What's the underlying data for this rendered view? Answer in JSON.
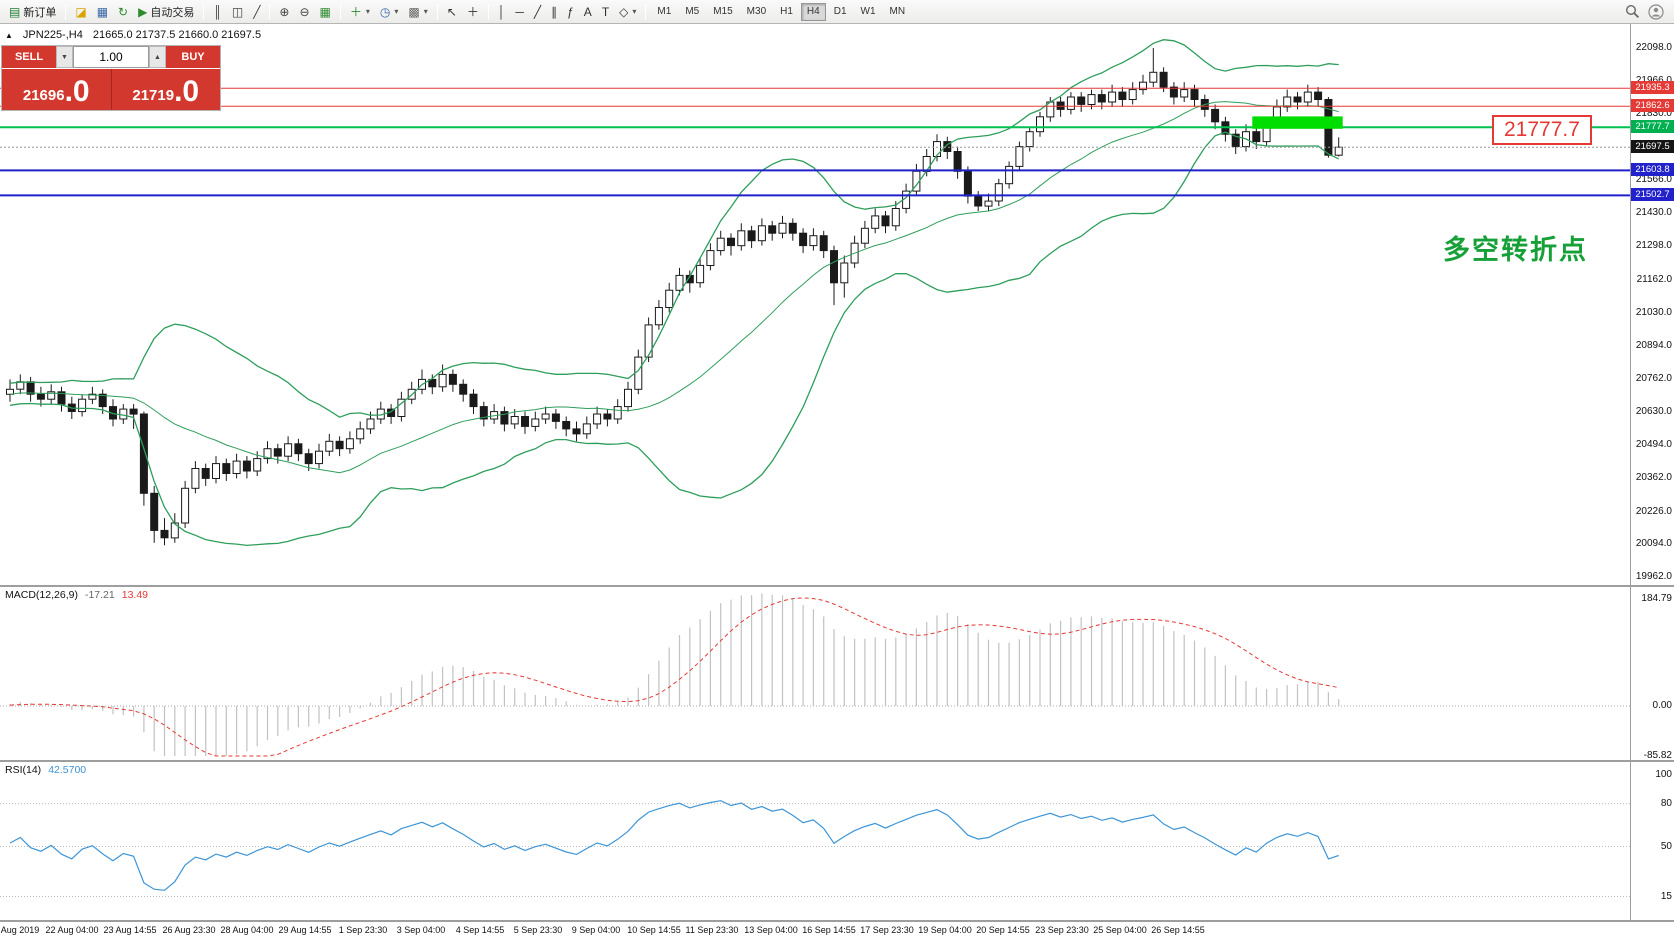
{
  "toolbar": {
    "items": [
      {
        "name": "new-order-button",
        "glyph": "▤",
        "color": "#1a7a2a",
        "label": "新订单"
      },
      {
        "sep": true
      },
      {
        "name": "market-watch-icon",
        "glyph": "◪",
        "color": "#d9a400"
      },
      {
        "name": "data-window-icon",
        "glyph": "▦",
        "color": "#3465a4"
      },
      {
        "name": "refresh-icon",
        "glyph": "↻",
        "color": "#2d8a2d"
      },
      {
        "name": "autotrading-button",
        "glyph": "▶",
        "color": "#2d8a2d",
        "label": "自动交易"
      },
      {
        "sep": true
      },
      {
        "name": "bar-chart-icon",
        "glyph": "║",
        "color": "#444"
      },
      {
        "name": "candlestick-chart-icon",
        "glyph": "◫",
        "color": "#444"
      },
      {
        "name": "line-chart-icon",
        "glyph": "╱",
        "color": "#444"
      },
      {
        "sep": true
      },
      {
        "name": "zoom-in-icon",
        "glyph": "⊕",
        "color": "#444"
      },
      {
        "name": "zoom-out-icon",
        "glyph": "⊖",
        "color": "#444"
      },
      {
        "name": "tile-windows-icon",
        "glyph": "▦",
        "color": "#2d8a2d"
      },
      {
        "sep": true
      },
      {
        "name": "indicators-button",
        "glyph": "＋",
        "color": "#2d8a2d",
        "dropdown": true
      },
      {
        "name": "periods-button",
        "glyph": "◷",
        "color": "#3465a4",
        "dropdown": true
      },
      {
        "name": "templates-button",
        "glyph": "▩",
        "color": "#666",
        "dropdown": true
      },
      {
        "sep": true
      },
      {
        "name": "cursor-icon",
        "glyph": "↖",
        "color": "#333"
      },
      {
        "name": "crosshair-icon",
        "glyph": "＋",
        "color": "#333"
      },
      {
        "sep": true
      },
      {
        "name": "vertical-line-icon",
        "glyph": "│",
        "color": "#333"
      },
      {
        "name": "horizontal-line-icon",
        "glyph": "─",
        "color": "#333"
      },
      {
        "name": "trendline-icon",
        "glyph": "╱",
        "color": "#333"
      },
      {
        "name": "channel-icon",
        "glyph": "∥",
        "color": "#333"
      },
      {
        "name": "fibonacci-icon",
        "glyph": "ƒ",
        "color": "#333"
      },
      {
        "name": "text-icon",
        "glyph": "A",
        "color": "#333"
      },
      {
        "name": "text-label-icon",
        "glyph": "T",
        "color": "#333"
      },
      {
        "name": "shapes-button",
        "glyph": "◇",
        "color": "#333",
        "dropdown": true
      },
      {
        "sep": true
      }
    ],
    "timeframes": [
      {
        "label": "M1"
      },
      {
        "label": "M5"
      },
      {
        "label": "M15"
      },
      {
        "label": "M30"
      },
      {
        "label": "H1"
      },
      {
        "label": "H4",
        "active": true
      },
      {
        "label": "D1"
      },
      {
        "label": "W1"
      },
      {
        "label": "MN"
      }
    ]
  },
  "chart_header": {
    "symbol": "JPN225-,H4",
    "ohlc": "21665.0 21737.5 21660.0 21697.5"
  },
  "trade_panel": {
    "sell_label": "SELL",
    "buy_label": "BUY",
    "volume": "1.00",
    "sell_price_main": "21696",
    "sell_price_frac": ".0",
    "buy_price_main": "21719",
    "buy_price_frac": ".0"
  },
  "callout_price": "21777.7",
  "annotation": "多空转折点",
  "price_axis": {
    "ticks": [
      22098.0,
      21966.0,
      21830.0,
      21698.0,
      21566.0,
      21430.0,
      21298.0,
      21162.0,
      21030.0,
      20894.0,
      20762.0,
      20630.0,
      20494.0,
      20362.0,
      20226.0,
      20094.0,
      19962.0
    ]
  },
  "price_labels": [
    {
      "value": "21935.3",
      "price": 21935.3,
      "bg": "#e53935"
    },
    {
      "value": "21862.6",
      "price": 21862.6,
      "bg": "#e53935"
    },
    {
      "value": "21777.7",
      "price": 21777.7,
      "bg": "#00b050"
    },
    {
      "value": "21697.5",
      "price": 21697.5,
      "bg": "#151515"
    },
    {
      "value": "21603.8",
      "price": 21603.8,
      "bg": "#2222cc"
    },
    {
      "value": "21502.7",
      "price": 21502.7,
      "bg": "#2222cc"
    }
  ],
  "hlines": [
    {
      "price": 21935.3,
      "color": "#e53935",
      "w": 1
    },
    {
      "price": 21862.6,
      "color": "#e53935",
      "w": 1
    },
    {
      "price": 21777.7,
      "color": "#00c050",
      "w": 2
    },
    {
      "price": 21697.5,
      "color": "#999999",
      "w": 1,
      "dash": "2 2"
    },
    {
      "price": 21603.8,
      "color": "#2020cc",
      "w": 2
    },
    {
      "price": 21502.7,
      "color": "#2020cc",
      "w": 2
    }
  ],
  "highlight_box": {
    "bar_start": 121,
    "bar_end": 129,
    "price_top": 21822,
    "price_bottom": 21772,
    "color": "#00dd00"
  },
  "macd": {
    "label": "MACD(12,26,9)",
    "value_main": "-17.21",
    "value_signal": "13.49",
    "ticks": [
      {
        "v": 184.79,
        "t": "184.79"
      },
      {
        "v": 0,
        "t": "0.00"
      },
      {
        "v": -85.82,
        "t": "-85.82"
      }
    ]
  },
  "rsi": {
    "label": "RSI(14)",
    "value": "42.5700",
    "ticks": [
      {
        "v": 100,
        "t": "100"
      },
      {
        "v": 80,
        "t": "80"
      },
      {
        "v": 50,
        "t": "50"
      },
      {
        "v": 15,
        "t": "15"
      }
    ],
    "levels": [
      80,
      50,
      15
    ]
  },
  "time_axis": [
    "20 Aug 2019",
    "22 Aug 04:00",
    "23 Aug 14:55",
    "26 Aug 23:30",
    "28 Aug 04:00",
    "29 Aug 14:55",
    "1 Sep 23:30",
    "3 Sep 04:00",
    "4 Sep 14:55",
    "5 Sep 23:30",
    "9 Sep 04:00",
    "10 Sep 14:55",
    "11 Sep 23:30",
    "13 Sep 04:00",
    "16 Sep 14:55",
    "17 Sep 23:30",
    "19 Sep 04:00",
    "20 Sep 14:55",
    "23 Sep 23:30",
    "25 Sep 04:00",
    "26 Sep 14:55"
  ],
  "chart_data": {
    "type": "candlestick",
    "symbol": "JPN225-",
    "timeframe": "H4",
    "indicators": {
      "bollinger": "20,2",
      "macd": "12,26,9",
      "rsi": "14"
    },
    "ylim": [
      19930,
      22195
    ],
    "warmup_closes": [
      20700,
      20680,
      20720,
      20690,
      20730,
      20700,
      20660,
      20700,
      20740,
      20710,
      20680,
      20650,
      20690,
      20720,
      20700,
      20670,
      20700,
      20730,
      20710,
      20690,
      20660,
      20700,
      20720,
      20690,
      20710,
      20740,
      20700,
      20680,
      20700,
      20720
    ],
    "candles": [
      [
        20700,
        20760,
        20670,
        20720
      ],
      [
        20720,
        20780,
        20700,
        20750
      ],
      [
        20750,
        20770,
        20670,
        20700
      ],
      [
        20700,
        20730,
        20650,
        20680
      ],
      [
        20680,
        20740,
        20660,
        20710
      ],
      [
        20710,
        20730,
        20630,
        20660
      ],
      [
        20660,
        20690,
        20600,
        20630
      ],
      [
        20630,
        20700,
        20610,
        20680
      ],
      [
        20680,
        20730,
        20660,
        20700
      ],
      [
        20700,
        20720,
        20620,
        20650
      ],
      [
        20650,
        20680,
        20570,
        20600
      ],
      [
        20600,
        20660,
        20580,
        20640
      ],
      [
        20640,
        20660,
        20560,
        20620
      ],
      [
        20620,
        20630,
        20250,
        20300
      ],
      [
        20300,
        20330,
        20100,
        20150
      ],
      [
        20150,
        20200,
        20090,
        20120
      ],
      [
        20120,
        20220,
        20100,
        20180
      ],
      [
        20180,
        20350,
        20160,
        20320
      ],
      [
        20320,
        20430,
        20300,
        20400
      ],
      [
        20400,
        20420,
        20330,
        20360
      ],
      [
        20360,
        20450,
        20340,
        20420
      ],
      [
        20420,
        20440,
        20350,
        20380
      ],
      [
        20380,
        20460,
        20360,
        20430
      ],
      [
        20430,
        20450,
        20360,
        20390
      ],
      [
        20390,
        20470,
        20370,
        20440
      ],
      [
        20440,
        20510,
        20420,
        20480
      ],
      [
        20480,
        20500,
        20420,
        20450
      ],
      [
        20450,
        20530,
        20430,
        20500
      ],
      [
        20500,
        20520,
        20430,
        20460
      ],
      [
        20460,
        20480,
        20390,
        20420
      ],
      [
        20420,
        20500,
        20400,
        20470
      ],
      [
        20470,
        20540,
        20450,
        20510
      ],
      [
        20510,
        20530,
        20450,
        20480
      ],
      [
        20480,
        20550,
        20460,
        20520
      ],
      [
        20520,
        20590,
        20500,
        20560
      ],
      [
        20560,
        20630,
        20540,
        20600
      ],
      [
        20600,
        20670,
        20580,
        20640
      ],
      [
        20640,
        20660,
        20580,
        20610
      ],
      [
        20610,
        20710,
        20590,
        20680
      ],
      [
        20680,
        20750,
        20660,
        20720
      ],
      [
        20720,
        20800,
        20700,
        20760
      ],
      [
        20760,
        20780,
        20700,
        20730
      ],
      [
        20730,
        20820,
        20710,
        20780
      ],
      [
        20780,
        20800,
        20710,
        20740
      ],
      [
        20740,
        20760,
        20670,
        20700
      ],
      [
        20700,
        20720,
        20620,
        20650
      ],
      [
        20650,
        20670,
        20570,
        20600
      ],
      [
        20600,
        20660,
        20580,
        20630
      ],
      [
        20630,
        20650,
        20550,
        20580
      ],
      [
        20580,
        20640,
        20560,
        20610
      ],
      [
        20610,
        20630,
        20540,
        20570
      ],
      [
        20570,
        20630,
        20550,
        20600
      ],
      [
        20600,
        20650,
        20580,
        20620
      ],
      [
        20620,
        20640,
        20560,
        20590
      ],
      [
        20590,
        20610,
        20530,
        20560
      ],
      [
        20560,
        20590,
        20510,
        20540
      ],
      [
        20540,
        20610,
        20520,
        20580
      ],
      [
        20580,
        20650,
        20560,
        20620
      ],
      [
        20620,
        20640,
        20570,
        20600
      ],
      [
        20600,
        20680,
        20580,
        20650
      ],
      [
        20650,
        20750,
        20630,
        20720
      ],
      [
        20720,
        20880,
        20700,
        20850
      ],
      [
        20850,
        21010,
        20830,
        20980
      ],
      [
        20980,
        21080,
        20960,
        21050
      ],
      [
        21050,
        21150,
        21030,
        21120
      ],
      [
        21120,
        21210,
        21100,
        21180
      ],
      [
        21180,
        21200,
        21110,
        21150
      ],
      [
        21150,
        21250,
        21130,
        21220
      ],
      [
        21220,
        21310,
        21200,
        21280
      ],
      [
        21280,
        21360,
        21260,
        21330
      ],
      [
        21330,
        21350,
        21260,
        21300
      ],
      [
        21300,
        21390,
        21280,
        21360
      ],
      [
        21360,
        21380,
        21290,
        21320
      ],
      [
        21320,
        21410,
        21300,
        21380
      ],
      [
        21380,
        21400,
        21320,
        21350
      ],
      [
        21350,
        21420,
        21330,
        21390
      ],
      [
        21390,
        21410,
        21320,
        21350
      ],
      [
        21350,
        21370,
        21270,
        21300
      ],
      [
        21300,
        21370,
        21280,
        21340
      ],
      [
        21340,
        21360,
        21250,
        21280
      ],
      [
        21280,
        21300,
        21060,
        21150
      ],
      [
        21150,
        21260,
        21090,
        21230
      ],
      [
        21230,
        21340,
        21210,
        21310
      ],
      [
        21310,
        21400,
        21290,
        21370
      ],
      [
        21370,
        21450,
        21350,
        21420
      ],
      [
        21420,
        21440,
        21350,
        21380
      ],
      [
        21380,
        21480,
        21360,
        21450
      ],
      [
        21450,
        21550,
        21430,
        21520
      ],
      [
        21520,
        21630,
        21500,
        21600
      ],
      [
        21600,
        21690,
        21580,
        21660
      ],
      [
        21660,
        21750,
        21640,
        21720
      ],
      [
        21720,
        21740,
        21650,
        21680
      ],
      [
        21680,
        21700,
        21570,
        21600
      ],
      [
        21600,
        21620,
        21470,
        21500
      ],
      [
        21500,
        21520,
        21440,
        21460
      ],
      [
        21460,
        21510,
        21440,
        21480
      ],
      [
        21480,
        21570,
        21460,
        21550
      ],
      [
        21550,
        21640,
        21530,
        21620
      ],
      [
        21620,
        21720,
        21600,
        21700
      ],
      [
        21700,
        21780,
        21680,
        21760
      ],
      [
        21760,
        21840,
        21740,
        21820
      ],
      [
        21820,
        21900,
        21800,
        21880
      ],
      [
        21880,
        21900,
        21820,
        21850
      ],
      [
        21850,
        21920,
        21830,
        21900
      ],
      [
        21900,
        21920,
        21840,
        21870
      ],
      [
        21870,
        21930,
        21850,
        21910
      ],
      [
        21910,
        21930,
        21850,
        21880
      ],
      [
        21880,
        21950,
        21860,
        21920
      ],
      [
        21920,
        21940,
        21860,
        21890
      ],
      [
        21890,
        21960,
        21870,
        21930
      ],
      [
        21930,
        21990,
        21910,
        21960
      ],
      [
        21960,
        22098,
        21940,
        22000
      ],
      [
        22000,
        22020,
        21920,
        21940
      ],
      [
        21940,
        21960,
        21870,
        21900
      ],
      [
        21900,
        21960,
        21880,
        21930
      ],
      [
        21930,
        21950,
        21860,
        21890
      ],
      [
        21890,
        21910,
        21820,
        21850
      ],
      [
        21850,
        21870,
        21770,
        21800
      ],
      [
        21800,
        21820,
        21720,
        21750
      ],
      [
        21750,
        21770,
        21670,
        21700
      ],
      [
        21700,
        21790,
        21680,
        21760
      ],
      [
        21760,
        21780,
        21690,
        21720
      ],
      [
        21720,
        21820,
        21700,
        21800
      ],
      [
        21800,
        21890,
        21780,
        21860
      ],
      [
        21860,
        21930,
        21840,
        21900
      ],
      [
        21900,
        21920,
        21850,
        21880
      ],
      [
        21880,
        21950,
        21860,
        21920
      ],
      [
        21920,
        21940,
        21860,
        21890
      ],
      [
        21890,
        21900,
        21655,
        21665
      ],
      [
        21665,
        21737.5,
        21660,
        21697.5
      ]
    ]
  }
}
